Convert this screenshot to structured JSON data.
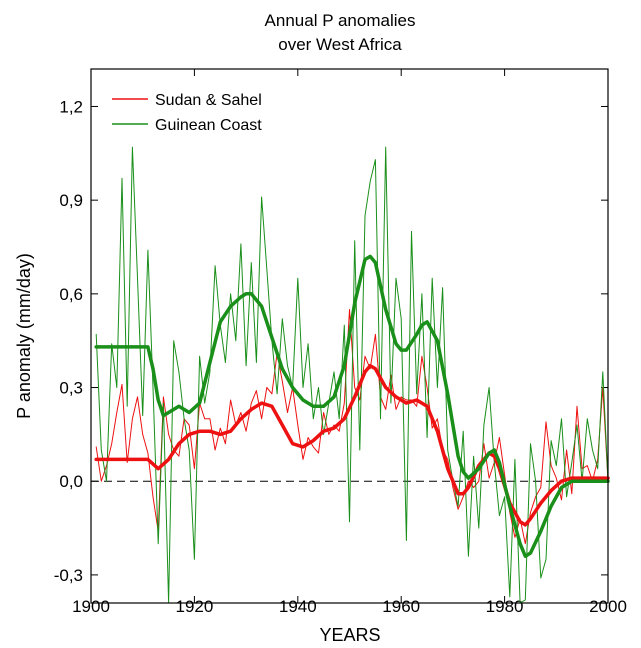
{
  "chart_data": {
    "type": "line",
    "title": [
      "Annual P anomalies",
      "over West Africa"
    ],
    "xlabel": "YEARS",
    "ylabel": "P anomaly (mm/day)",
    "xlim": [
      1900,
      2000
    ],
    "ylim": [
      -0.39,
      1.32
    ],
    "x_ticks": [
      1900,
      1920,
      1940,
      1960,
      1980,
      2000
    ],
    "x_tick_labels": [
      "1900",
      "1920",
      "1940",
      "1960",
      "1980",
      "2000"
    ],
    "y_ticks": [
      -0.3,
      0.0,
      0.3,
      0.6,
      0.9,
      1.2
    ],
    "y_tick_labels": [
      "-0,3",
      "0,0",
      "0,3",
      "0,6",
      "0,9",
      "1,2"
    ],
    "zero_line": "dashed",
    "legend_position": "top-left",
    "colors": {
      "sudan": "#ee1111",
      "guinean": "#1a8f1a"
    },
    "series": [
      {
        "name": "Sudan & Sahel",
        "color": "#ee1111",
        "x": [
          1901,
          1902,
          1903,
          1904,
          1905,
          1906,
          1907,
          1908,
          1909,
          1910,
          1911,
          1912,
          1913,
          1914,
          1915,
          1916,
          1917,
          1918,
          1919,
          1920,
          1921,
          1922,
          1923,
          1924,
          1925,
          1926,
          1927,
          1928,
          1929,
          1930,
          1931,
          1932,
          1933,
          1934,
          1935,
          1936,
          1937,
          1938,
          1939,
          1940,
          1941,
          1942,
          1943,
          1944,
          1945,
          1946,
          1947,
          1948,
          1949,
          1950,
          1951,
          1952,
          1953,
          1954,
          1955,
          1956,
          1957,
          1958,
          1959,
          1960,
          1961,
          1962,
          1963,
          1964,
          1965,
          1966,
          1967,
          1968,
          1969,
          1970,
          1971,
          1972,
          1973,
          1974,
          1975,
          1976,
          1977,
          1978,
          1979,
          1980,
          1981,
          1982,
          1983,
          1984,
          1985,
          1986,
          1987,
          1988,
          1989,
          1990,
          1991,
          1992,
          1993,
          1994,
          1995,
          1996,
          1997,
          1998,
          1999,
          2000
        ],
        "values": [
          0.11,
          0.0,
          0.05,
          0.12,
          0.22,
          0.31,
          0.06,
          0.2,
          0.27,
          0.15,
          0.09,
          -0.05,
          -0.16,
          0.27,
          0.15,
          0.1,
          0.08,
          0.2,
          0.18,
          0.04,
          0.25,
          0.2,
          0.2,
          0.1,
          0.17,
          0.12,
          0.26,
          0.18,
          0.22,
          0.16,
          0.25,
          0.29,
          0.2,
          0.3,
          0.28,
          0.41,
          0.32,
          0.22,
          0.3,
          0.18,
          0.07,
          0.14,
          0.11,
          0.09,
          0.22,
          0.15,
          0.18,
          0.16,
          0.25,
          0.55,
          0.3,
          0.26,
          0.4,
          0.36,
          0.47,
          0.27,
          0.23,
          0.34,
          0.23,
          0.27,
          0.26,
          0.26,
          0.24,
          0.4,
          0.3,
          0.17,
          0.2,
          0.1,
          0.07,
          -0.02,
          -0.09,
          -0.05,
          0.0,
          -0.02,
          0.0,
          0.12,
          0.01,
          0.06,
          0.14,
          0.02,
          -0.1,
          -0.18,
          -0.12,
          -0.2,
          -0.1,
          -0.05,
          -0.02,
          0.19,
          0.05,
          0.01,
          -0.06,
          0.1,
          -0.04,
          0.24,
          0.04,
          0.05,
          0.0,
          0.07,
          0.3,
          0.0
        ]
      },
      {
        "name": "Guinean Coast",
        "color": "#1a8f1a",
        "x": [
          1901,
          1902,
          1903,
          1904,
          1905,
          1906,
          1907,
          1908,
          1909,
          1910,
          1911,
          1912,
          1913,
          1914,
          1915,
          1916,
          1917,
          1918,
          1919,
          1920,
          1921,
          1922,
          1923,
          1924,
          1925,
          1926,
          1927,
          1928,
          1929,
          1930,
          1931,
          1932,
          1933,
          1934,
          1935,
          1936,
          1937,
          1938,
          1939,
          1940,
          1941,
          1942,
          1943,
          1944,
          1945,
          1946,
          1947,
          1948,
          1949,
          1950,
          1951,
          1952,
          1953,
          1954,
          1955,
          1956,
          1957,
          1958,
          1959,
          1960,
          1961,
          1962,
          1963,
          1964,
          1965,
          1966,
          1967,
          1968,
          1969,
          1970,
          1971,
          1972,
          1973,
          1974,
          1975,
          1976,
          1977,
          1978,
          1979,
          1980,
          1981,
          1982,
          1983,
          1984,
          1985,
          1986,
          1987,
          1988,
          1989,
          1990,
          1991,
          1992,
          1993,
          1994,
          1995,
          1996,
          1997,
          1998,
          1999,
          2000
        ],
        "values": [
          0.47,
          0.1,
          0.0,
          0.44,
          0.3,
          0.97,
          0.24,
          1.07,
          0.65,
          0.21,
          0.74,
          0.3,
          -0.2,
          0.25,
          -0.39,
          0.45,
          0.35,
          0.2,
          0.1,
          -0.25,
          0.4,
          0.25,
          0.35,
          0.69,
          0.5,
          0.38,
          0.6,
          0.45,
          0.76,
          0.37,
          0.7,
          0.38,
          0.91,
          0.68,
          0.45,
          0.28,
          0.52,
          0.37,
          0.3,
          0.65,
          0.3,
          0.44,
          0.2,
          0.3,
          0.15,
          0.25,
          0.35,
          0.2,
          0.5,
          -0.13,
          0.77,
          0.1,
          0.85,
          0.96,
          1.03,
          0.2,
          1.07,
          0.25,
          0.65,
          0.52,
          -0.19,
          0.8,
          0.28,
          0.6,
          0.14,
          0.65,
          0.3,
          0.62,
          0.1,
          0.0,
          -0.08,
          0.16,
          -0.24,
          0.08,
          -0.15,
          0.18,
          0.3,
          0.06,
          -0.11,
          -0.05,
          -0.37,
          0.07,
          -0.39,
          -0.38,
          0.12,
          0.0,
          -0.31,
          -0.25,
          0.13,
          0.05,
          0.2,
          -0.05,
          0.06,
          0.18,
          0.0,
          0.2,
          0.1,
          0.04,
          0.35,
          0.0
        ]
      },
      {
        "name": "",
        "color": "#ee1111",
        "x": [
          1901,
          1911,
          1913,
          1915,
          1917,
          1919,
          1921,
          1923,
          1925,
          1927,
          1929,
          1931,
          1933,
          1935,
          1937,
          1939,
          1941,
          1943,
          1945,
          1947,
          1949,
          1951,
          1953,
          1954,
          1955,
          1957,
          1959,
          1961,
          1963,
          1965,
          1967,
          1969,
          1971,
          1972,
          1973,
          1975,
          1977,
          1978,
          1979,
          1981,
          1983,
          1984,
          1985,
          1987,
          1989,
          1991,
          1993,
          1995,
          1997,
          2000
        ],
        "values": [
          0.07,
          0.07,
          0.04,
          0.07,
          0.12,
          0.15,
          0.16,
          0.16,
          0.15,
          0.16,
          0.2,
          0.23,
          0.25,
          0.24,
          0.18,
          0.12,
          0.11,
          0.13,
          0.16,
          0.17,
          0.2,
          0.27,
          0.35,
          0.37,
          0.36,
          0.3,
          0.27,
          0.25,
          0.26,
          0.24,
          0.16,
          0.04,
          -0.04,
          -0.04,
          -0.02,
          0.05,
          0.09,
          0.08,
          0.04,
          -0.07,
          -0.13,
          -0.14,
          -0.12,
          -0.07,
          -0.03,
          0.0,
          0.01,
          0.01,
          0.01,
          0.01
        ]
      },
      {
        "name": "",
        "color": "#1a8f1a",
        "x": [
          1901,
          1911,
          1912,
          1913,
          1914,
          1915,
          1917,
          1919,
          1921,
          1923,
          1925,
          1927,
          1929,
          1930,
          1931,
          1933,
          1935,
          1937,
          1939,
          1941,
          1943,
          1945,
          1947,
          1949,
          1951,
          1953,
          1954,
          1955,
          1957,
          1959,
          1960,
          1961,
          1963,
          1964,
          1965,
          1967,
          1969,
          1971,
          1972,
          1973,
          1975,
          1977,
          1978,
          1979,
          1981,
          1983,
          1984,
          1985,
          1987,
          1989,
          1991,
          1993,
          1995,
          1997,
          2000
        ],
        "values": [
          0.43,
          0.43,
          0.36,
          0.26,
          0.21,
          0.22,
          0.24,
          0.22,
          0.25,
          0.38,
          0.51,
          0.56,
          0.59,
          0.6,
          0.6,
          0.56,
          0.46,
          0.36,
          0.3,
          0.26,
          0.24,
          0.24,
          0.27,
          0.37,
          0.57,
          0.71,
          0.72,
          0.7,
          0.55,
          0.44,
          0.42,
          0.42,
          0.47,
          0.5,
          0.51,
          0.45,
          0.28,
          0.08,
          0.03,
          0.01,
          0.04,
          0.09,
          0.1,
          0.06,
          -0.08,
          -0.2,
          -0.24,
          -0.23,
          -0.16,
          -0.08,
          -0.02,
          0.0,
          0.0,
          0.0,
          0.0
        ]
      }
    ]
  }
}
